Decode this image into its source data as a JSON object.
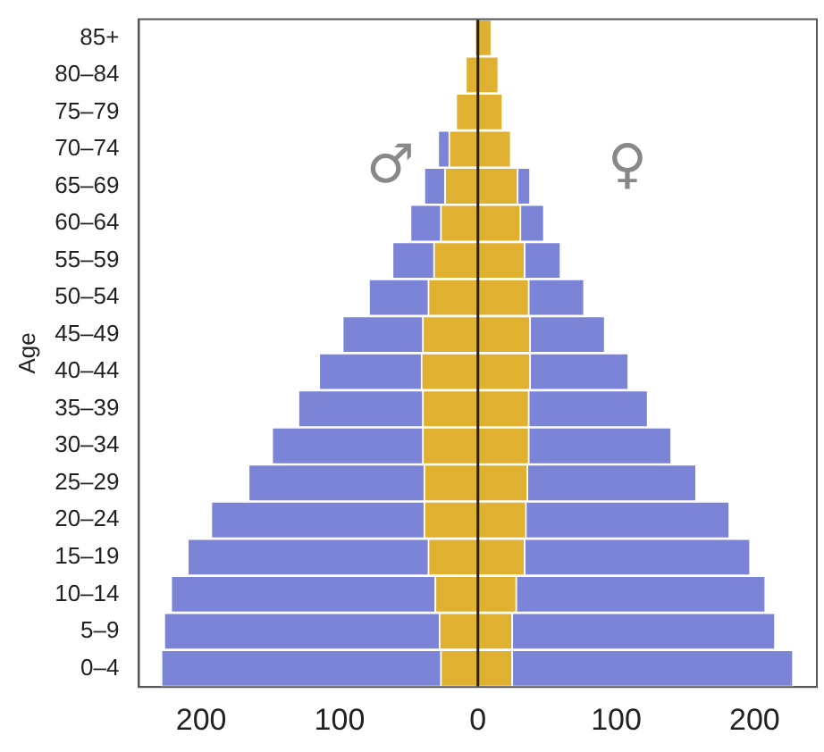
{
  "chart_data": {
    "type": "bar",
    "orientation": "horizontal",
    "ylabel": "Age",
    "categories": [
      "85+",
      "80–84",
      "75–79",
      "70–74",
      "65–69",
      "60–64",
      "55–59",
      "50–54",
      "45–49",
      "40–44",
      "35–39",
      "30–34",
      "25–29",
      "20–24",
      "15–19",
      "10–14",
      "5–9",
      "0–4"
    ],
    "series": [
      {
        "color": "#e0b030",
        "values": [
          -2,
          -9,
          -16,
          -21,
          -24,
          -27,
          -32,
          -36,
          -40,
          -41,
          -40,
          -40,
          -39,
          -39,
          -36,
          -31,
          -28,
          -27
        ]
      },
      {
        "color": "#e0b030",
        "values": [
          10,
          15,
          18,
          24,
          29,
          31,
          34,
          37,
          38,
          38,
          37,
          37,
          36,
          35,
          34,
          28,
          25,
          25
        ]
      },
      {
        "color": "#7b84d6",
        "values": [
          null,
          null,
          null,
          -8,
          -15,
          -22,
          -30,
          -43,
          -58,
          -74,
          -90,
          -109,
          -127,
          -154,
          -174,
          -191,
          -199,
          -202
        ]
      },
      {
        "color": "#7b84d6",
        "values": [
          null,
          null,
          null,
          null,
          9,
          17,
          26,
          40,
          54,
          71,
          86,
          103,
          122,
          147,
          163,
          180,
          190,
          203
        ]
      }
    ],
    "stacked": true,
    "xlim": [
      -245,
      245
    ],
    "xticks": [
      {
        "value": -200,
        "label": "200"
      },
      {
        "value": -100,
        "label": "100"
      },
      0,
      100,
      200
    ],
    "ref_lines": [
      {
        "axis": "x",
        "value": 0,
        "color": "#222222"
      }
    ],
    "annotations": [
      "♂",
      "♀"
    ],
    "grid": false,
    "legend": false
  }
}
